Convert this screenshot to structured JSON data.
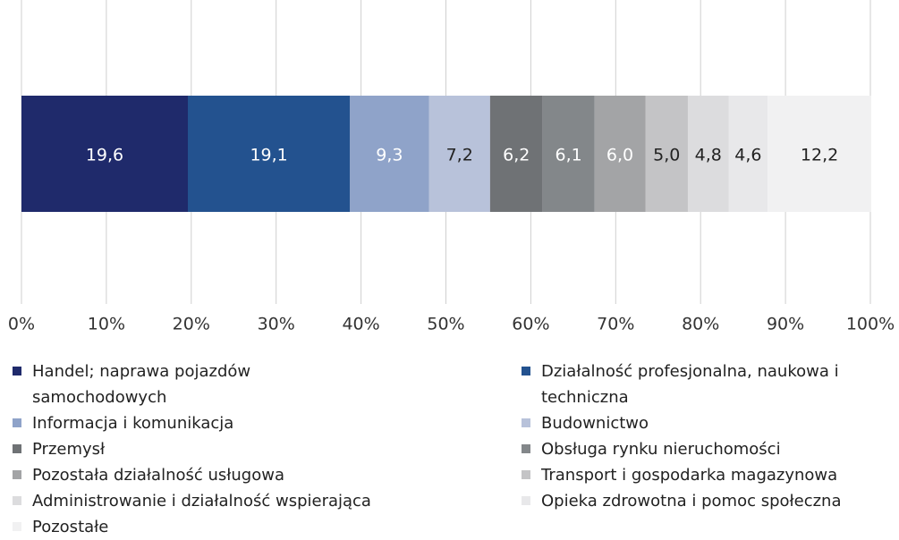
{
  "chart_data": {
    "type": "stacked-bar",
    "orientation": "horizontal",
    "series": [
      {
        "name": "Handel; naprawa pojazdów samochodowych",
        "color": "#1f2a6b",
        "values": [
          19.6
        ],
        "value_labels": [
          "19,6"
        ]
      },
      {
        "name": "Działalność profesjonalna, naukowa i techniczna",
        "color": "#23528f",
        "values": [
          19.1
        ],
        "value_labels": [
          "19,1"
        ]
      },
      {
        "name": "Informacja i komunikacja",
        "color": "#8fa3c9",
        "values": [
          9.3
        ],
        "value_labels": [
          "9,3"
        ]
      },
      {
        "name": "Budownictwo",
        "color": "#b8c2da",
        "values": [
          7.2
        ],
        "value_labels": [
          "7,2"
        ]
      },
      {
        "name": "Przemysł",
        "color": "#6f7275",
        "values": [
          6.2
        ],
        "value_labels": [
          "6,2"
        ]
      },
      {
        "name": "Obsługa rynku nieruchomości",
        "color": "#83878a",
        "values": [
          6.1
        ],
        "value_labels": [
          "6,1"
        ]
      },
      {
        "name": "Pozostała działalność usługowa",
        "color": "#a3a4a6",
        "values": [
          6.0
        ],
        "value_labels": [
          "6,0"
        ]
      },
      {
        "name": "Transport i gospodarka magazynowa",
        "color": "#c4c4c6",
        "values": [
          5.0
        ],
        "value_labels": [
          "5,0"
        ]
      },
      {
        "name": "Administrowanie i działalność wspierająca",
        "color": "#dcdcde",
        "values": [
          4.8
        ],
        "value_labels": [
          "4,8"
        ]
      },
      {
        "name": "Opieka zdrowotna i pomoc społeczna",
        "color": "#e8e8ea",
        "values": [
          4.6
        ],
        "value_labels": [
          "4,6"
        ]
      },
      {
        "name": "Pozostałe",
        "color": "#f1f1f2",
        "values": [
          12.2
        ],
        "value_labels": [
          "12,2"
        ]
      }
    ],
    "xlim": [
      0,
      100
    ],
    "xticks": [
      {
        "value": 0,
        "label": "0%"
      },
      {
        "value": 10,
        "label": "10%"
      },
      {
        "value": 20,
        "label": "20%"
      },
      {
        "value": 30,
        "label": "30%"
      },
      {
        "value": 40,
        "label": "40%"
      },
      {
        "value": 50,
        "label": "50%"
      },
      {
        "value": 60,
        "label": "60%"
      },
      {
        "value": 70,
        "label": "70%"
      },
      {
        "value": 80,
        "label": "80%"
      },
      {
        "value": 90,
        "label": "90%"
      },
      {
        "value": 100,
        "label": "100%"
      }
    ],
    "grid": true
  }
}
